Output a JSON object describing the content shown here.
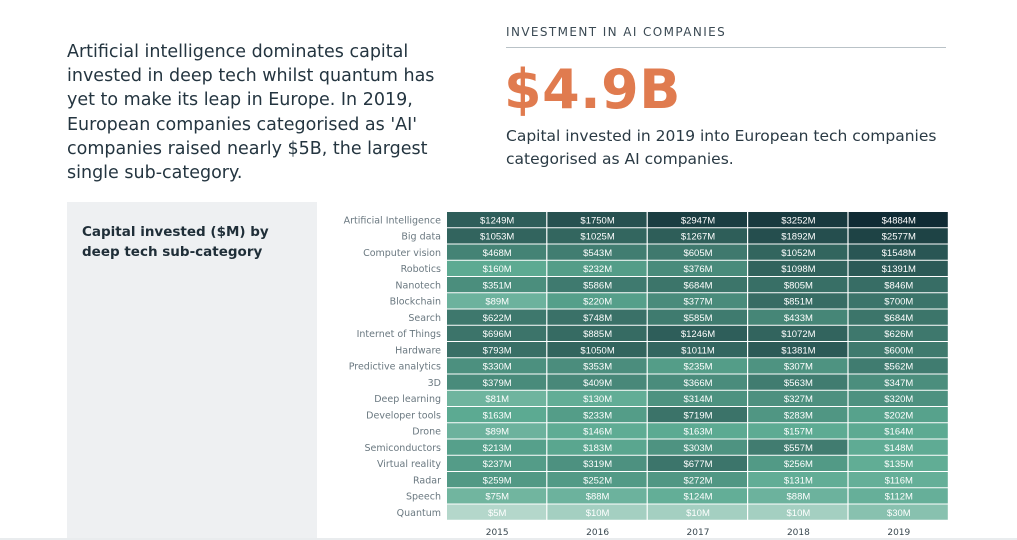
{
  "intro_text": "Artificial intelligence dominates capital invested in deep tech whilst quantum has yet to make its leap in Europe. In 2019, European companies categorised as 'AI' companies raised nearly $5B, the largest single sub-category.",
  "stat": {
    "header": "INVESTMENT IN AI COMPANIES",
    "value": "$4.9B",
    "description": "Capital invested in 2019 into European tech companies categorised as AI companies."
  },
  "panel": {
    "title": "Capital invested ($M) by deep tech sub-category"
  },
  "colors": {
    "accent": "#e07b4f",
    "scale_low": "#e3efea",
    "scale_high": "#0f2a33"
  },
  "chart_data": {
    "type": "heatmap",
    "title": "Capital invested ($M) by deep tech sub-category",
    "x": [
      "2015",
      "2016",
      "2017",
      "2018",
      "2019"
    ],
    "categories": [
      "Artificial Intelligence",
      "Big data",
      "Computer vision",
      "Robotics",
      "Nanotech",
      "Blockchain",
      "Search",
      "Internet of Things",
      "Hardware",
      "Predictive analytics",
      "3D",
      "Deep learning",
      "Developer tools",
      "Drone",
      "Semiconductors",
      "Virtual reality",
      "Radar",
      "Speech",
      "Quantum"
    ],
    "values": [
      [
        1249,
        1750,
        2947,
        3252,
        4884
      ],
      [
        1053,
        1025,
        1267,
        1892,
        2577
      ],
      [
        468,
        543,
        605,
        1052,
        1548
      ],
      [
        160,
        232,
        376,
        1098,
        1391
      ],
      [
        351,
        586,
        684,
        805,
        846
      ],
      [
        89,
        220,
        377,
        851,
        700
      ],
      [
        622,
        748,
        585,
        433,
        684
      ],
      [
        696,
        885,
        1246,
        1072,
        626
      ],
      [
        793,
        1050,
        1011,
        1381,
        600
      ],
      [
        330,
        353,
        235,
        307,
        562
      ],
      [
        379,
        409,
        366,
        563,
        347
      ],
      [
        81,
        130,
        314,
        327,
        320
      ],
      [
        163,
        233,
        719,
        283,
        202
      ],
      [
        89,
        146,
        163,
        157,
        164
      ],
      [
        213,
        183,
        303,
        557,
        148
      ],
      [
        237,
        319,
        677,
        256,
        135
      ],
      [
        259,
        252,
        272,
        131,
        116
      ],
      [
        75,
        88,
        124,
        88,
        112
      ],
      [
        5,
        10,
        10,
        10,
        30
      ]
    ],
    "cell_labels": [
      [
        "$1249M",
        "$1750M",
        "$2947M",
        "$3252M",
        "$4884M"
      ],
      [
        "$1053M",
        "$1025M",
        "$1267M",
        "$1892M",
        "$2577M"
      ],
      [
        "$468M",
        "$543M",
        "$605M",
        "$1052M",
        "$1548M"
      ],
      [
        "$160M",
        "$232M",
        "$376M",
        "$1098M",
        "$1391M"
      ],
      [
        "$351M",
        "$586M",
        "$684M",
        "$805M",
        "$846M"
      ],
      [
        "$89M",
        "$220M",
        "$377M",
        "$851M",
        "$700M"
      ],
      [
        "$622M",
        "$748M",
        "$585M",
        "$433M",
        "$684M"
      ],
      [
        "$696M",
        "$885M",
        "$1246M",
        "$1072M",
        "$626M"
      ],
      [
        "$793M",
        "$1050M",
        "$1011M",
        "$1381M",
        "$600M"
      ],
      [
        "$330M",
        "$353M",
        "$235M",
        "$307M",
        "$562M"
      ],
      [
        "$379M",
        "$409M",
        "$366M",
        "$563M",
        "$347M"
      ],
      [
        "$81M",
        "$130M",
        "$314M",
        "$327M",
        "$320M"
      ],
      [
        "$163M",
        "$233M",
        "$719M",
        "$283M",
        "$202M"
      ],
      [
        "$89M",
        "$146M",
        "$163M",
        "$157M",
        "$164M"
      ],
      [
        "$213M",
        "$183M",
        "$303M",
        "$557M",
        "$148M"
      ],
      [
        "$237M",
        "$319M",
        "$677M",
        "$256M",
        "$135M"
      ],
      [
        "$259M",
        "$252M",
        "$272M",
        "$131M",
        "$116M"
      ],
      [
        "$75M",
        "$88M",
        "$124M",
        "$88M",
        "$112M"
      ],
      [
        "$5M",
        "$10M",
        "$10M",
        "$10M",
        "$30M"
      ]
    ],
    "xlabel": "",
    "ylabel": ""
  }
}
